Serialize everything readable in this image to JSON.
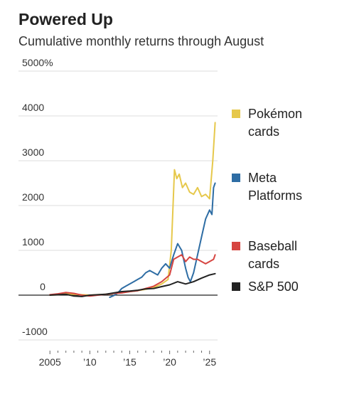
{
  "header": {
    "title": "Powered Up",
    "subtitle": "Cumulative monthly returns through August"
  },
  "chart_data": {
    "type": "line",
    "title": "Powered Up",
    "subtitle": "Cumulative monthly returns through August",
    "ylim": [
      -1000,
      5000
    ],
    "xlim": [
      2004,
      2026
    ],
    "yticks": [
      {
        "value": 5000,
        "label": "5000%"
      },
      {
        "value": 4000,
        "label": "4000"
      },
      {
        "value": 3000,
        "label": "3000"
      },
      {
        "value": 2000,
        "label": "2000"
      },
      {
        "value": 1000,
        "label": "1000"
      },
      {
        "value": 0,
        "label": "0"
      },
      {
        "value": -1000,
        "label": "-1000"
      }
    ],
    "xticks": [
      {
        "value": 2005,
        "label": "2005"
      },
      {
        "value": 2010,
        "label": "’10"
      },
      {
        "value": 2015,
        "label": "’15"
      },
      {
        "value": 2020,
        "label": "’20"
      },
      {
        "value": 2025,
        "label": "’25"
      }
    ],
    "grid": true,
    "legend": "right",
    "series": [
      {
        "name": "Pokémon cards",
        "label_lines": [
          "Pokémon",
          "cards"
        ],
        "color": "#e6c84b",
        "x": [
          2005,
          2006,
          2007,
          2008,
          2009,
          2010,
          2011,
          2012,
          2013,
          2014,
          2015,
          2016,
          2017,
          2018,
          2019,
          2019.8,
          2020.2,
          2020.6,
          2020.9,
          2021.2,
          2021.6,
          2022.0,
          2022.5,
          2023.0,
          2023.5,
          2024.0,
          2024.5,
          2025.0,
          2025.4,
          2025.7
        ],
        "values": [
          0,
          10,
          30,
          20,
          10,
          0,
          10,
          20,
          40,
          60,
          80,
          100,
          130,
          170,
          250,
          350,
          1000,
          2800,
          2600,
          2700,
          2400,
          2500,
          2300,
          2250,
          2400,
          2200,
          2250,
          2150,
          3000,
          3850
        ]
      },
      {
        "name": "Meta Platforms",
        "label_lines": [
          "Meta",
          "Platforms"
        ],
        "color": "#2e6da4",
        "x": [
          2012.5,
          2013,
          2013.5,
          2014,
          2014.5,
          2015,
          2015.5,
          2016,
          2016.5,
          2017,
          2017.5,
          2018,
          2018.5,
          2019,
          2019.5,
          2020,
          2020.5,
          2021,
          2021.5,
          2022,
          2022.3,
          2022.6,
          2023,
          2023.5,
          2024,
          2024.5,
          2025,
          2025.3,
          2025.5,
          2025.7
        ],
        "values": [
          -50,
          -10,
          50,
          150,
          200,
          250,
          300,
          350,
          400,
          500,
          550,
          500,
          450,
          600,
          700,
          600,
          900,
          1150,
          1000,
          600,
          400,
          300,
          500,
          900,
          1300,
          1700,
          1900,
          1800,
          2400,
          2500
        ]
      },
      {
        "name": "Baseball cards",
        "label_lines": [
          "Baseball",
          "cards"
        ],
        "color": "#d64541",
        "x": [
          2005,
          2006,
          2007,
          2008,
          2009,
          2010,
          2011,
          2012,
          2013,
          2014,
          2015,
          2016,
          2017,
          2018,
          2019,
          2020,
          2020.5,
          2021,
          2021.5,
          2022,
          2022.5,
          2023,
          2023.5,
          2024,
          2024.5,
          2025,
          2025.5,
          2025.7
        ],
        "values": [
          10,
          30,
          60,
          40,
          0,
          -20,
          0,
          20,
          40,
          50,
          80,
          100,
          150,
          200,
          300,
          450,
          800,
          850,
          900,
          750,
          850,
          800,
          800,
          750,
          700,
          750,
          800,
          900
        ]
      },
      {
        "name": "S&P 500",
        "label_lines": [
          "S&P 500"
        ],
        "color": "#222222",
        "x": [
          2005,
          2006,
          2007,
          2008,
          2009,
          2010,
          2011,
          2012,
          2013,
          2014,
          2015,
          2016,
          2017,
          2018,
          2019,
          2020,
          2021,
          2022,
          2023,
          2024,
          2025,
          2025.7
        ],
        "values": [
          0,
          10,
          20,
          -20,
          -30,
          0,
          10,
          20,
          50,
          80,
          90,
          110,
          140,
          150,
          190,
          230,
          300,
          250,
          300,
          380,
          450,
          480
        ]
      }
    ]
  }
}
